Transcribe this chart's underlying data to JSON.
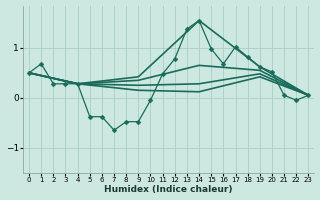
{
  "xlabel": "Humidex (Indice chaleur)",
  "background_color": "#cde8e0",
  "grid_color": "#a8cec6",
  "line_color": "#1a6b5a",
  "xlim": [
    -0.5,
    23.5
  ],
  "ylim": [
    -1.5,
    1.85
  ],
  "yticks": [
    -1,
    0,
    1
  ],
  "xticks": [
    0,
    1,
    2,
    3,
    4,
    5,
    6,
    7,
    8,
    9,
    10,
    11,
    12,
    13,
    14,
    15,
    16,
    17,
    18,
    19,
    20,
    21,
    22,
    23
  ],
  "lines": [
    {
      "x": [
        0,
        1,
        2,
        3,
        4,
        5,
        6,
        7,
        8,
        9,
        10,
        11,
        12,
        13,
        14,
        15,
        16,
        17,
        18,
        19,
        20,
        21,
        22,
        23
      ],
      "y": [
        0.5,
        0.68,
        0.28,
        0.28,
        0.28,
        -0.38,
        -0.38,
        -0.65,
        -0.48,
        -0.48,
        -0.05,
        0.48,
        0.78,
        1.38,
        1.55,
        0.98,
        0.68,
        1.02,
        0.82,
        0.62,
        0.52,
        0.05,
        -0.05,
        0.05
      ],
      "marker": "D",
      "markersize": 2.5,
      "linewidth": 0.9
    },
    {
      "x": [
        0,
        4,
        9,
        14,
        19,
        23
      ],
      "y": [
        0.5,
        0.28,
        0.42,
        1.55,
        0.62,
        0.05
      ],
      "marker": null,
      "linewidth": 1.2
    },
    {
      "x": [
        0,
        4,
        9,
        14,
        19,
        23
      ],
      "y": [
        0.5,
        0.28,
        0.35,
        0.65,
        0.55,
        0.05
      ],
      "marker": null,
      "linewidth": 1.2
    },
    {
      "x": [
        0,
        4,
        9,
        14,
        19,
        23
      ],
      "y": [
        0.5,
        0.28,
        0.25,
        0.28,
        0.48,
        0.05
      ],
      "marker": null,
      "linewidth": 1.2
    },
    {
      "x": [
        0,
        4,
        9,
        14,
        19,
        23
      ],
      "y": [
        0.5,
        0.28,
        0.15,
        0.12,
        0.42,
        0.05
      ],
      "marker": null,
      "linewidth": 1.2
    }
  ]
}
